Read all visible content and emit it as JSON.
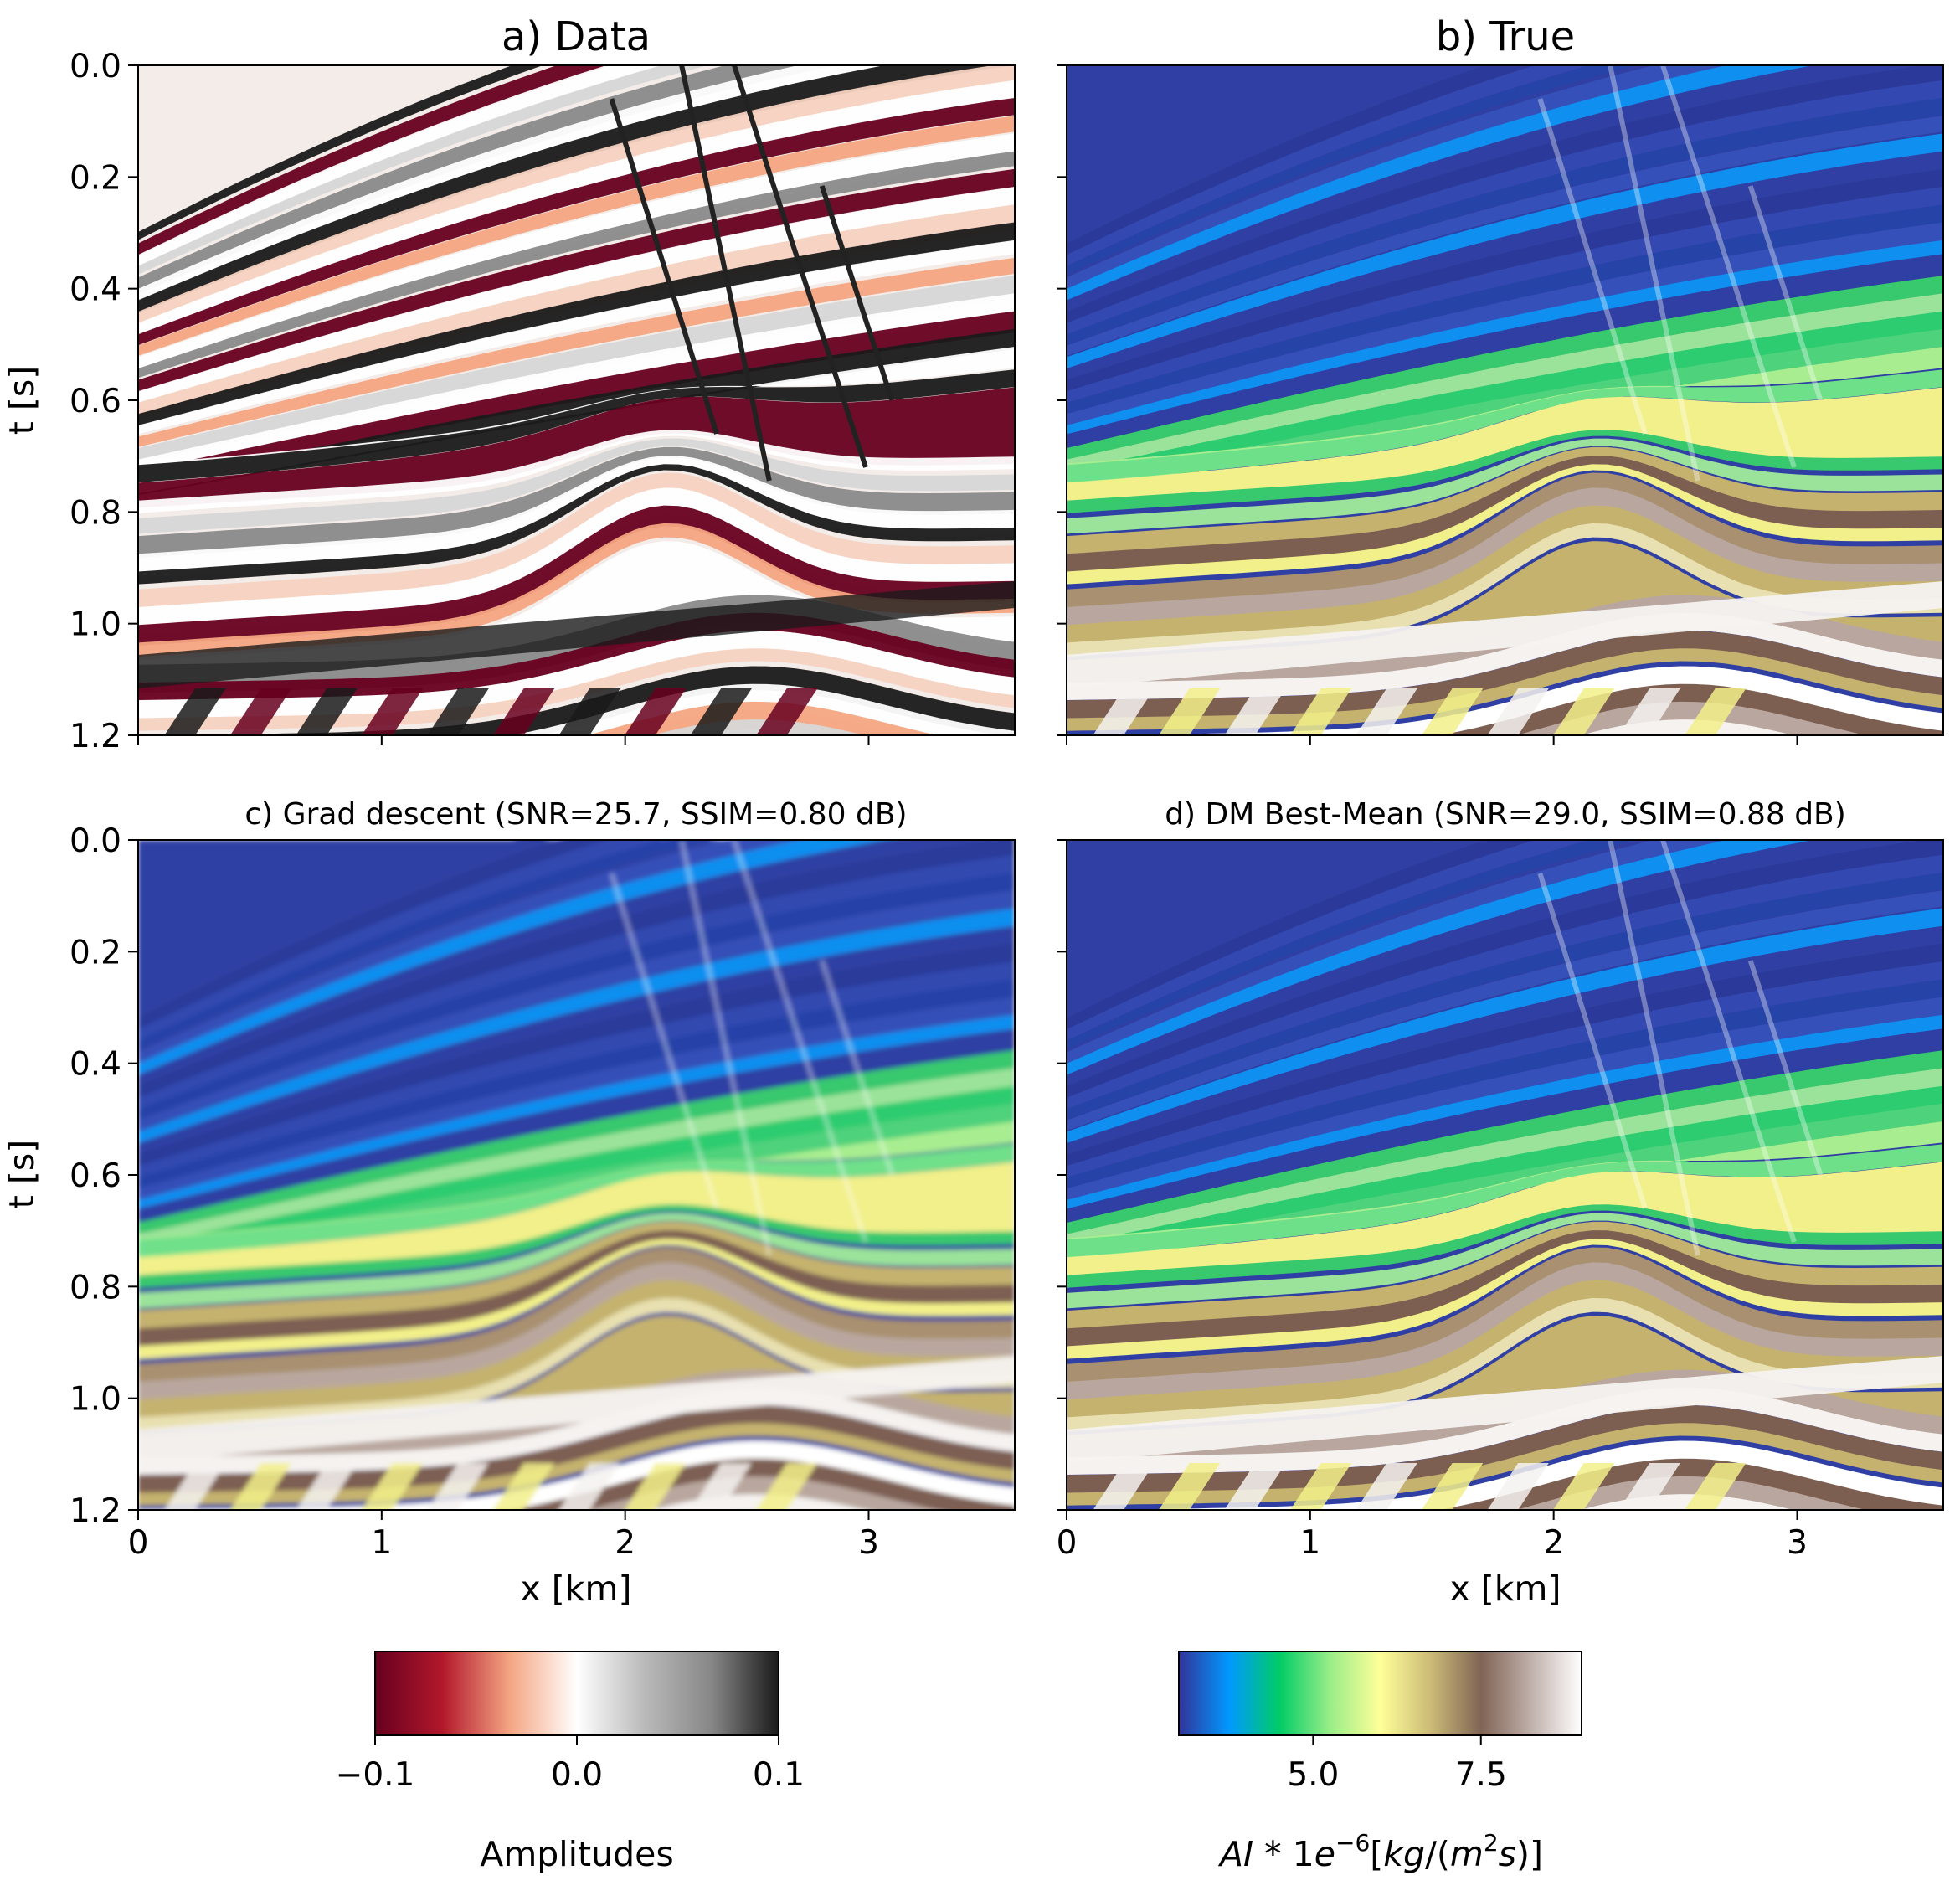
{
  "chart_data": [
    {
      "id": "a",
      "type": "heatmap",
      "title": "a) Data",
      "xlabel": "",
      "ylabel": "t [s]",
      "xlim": [
        0,
        3.6
      ],
      "ylim": [
        1.2,
        0.0
      ],
      "xticks": [
        0,
        1,
        2,
        3
      ],
      "xtick_labels_shown": false,
      "yticks": [
        "0.0",
        "0.2",
        "0.4",
        "0.6",
        "0.8",
        "1.0",
        "1.2"
      ],
      "colormap": "seismic-amplitude"
    },
    {
      "id": "b",
      "type": "heatmap",
      "title": "b) True",
      "xlabel": "",
      "ylabel": "",
      "xlim": [
        0,
        3.6
      ],
      "ylim": [
        1.2,
        0.0
      ],
      "xticks": [
        0,
        1,
        2,
        3
      ],
      "xtick_labels_shown": false,
      "ytick_labels_shown": false,
      "colormap": "terrain"
    },
    {
      "id": "c",
      "type": "heatmap",
      "title": "c) Grad descent (SNR=25.7, SSIM=0.80 dB)",
      "xlabel": "x [km]",
      "ylabel": "t [s]",
      "xlim": [
        0,
        3.6
      ],
      "ylim": [
        1.2,
        0.0
      ],
      "xticks": [
        "0",
        "1",
        "2",
        "3"
      ],
      "yticks": [
        "0.0",
        "0.2",
        "0.4",
        "0.6",
        "0.8",
        "1.0",
        "1.2"
      ],
      "colormap": "terrain"
    },
    {
      "id": "d",
      "type": "heatmap",
      "title": "d) DM Best-Mean (SNR=29.0, SSIM=0.88 dB)",
      "xlabel": "x [km]",
      "ylabel": "",
      "xlim": [
        0,
        3.6
      ],
      "ylim": [
        1.2,
        0.0
      ],
      "xticks": [
        "0",
        "1",
        "2",
        "3"
      ],
      "ytick_labels_shown": false,
      "colormap": "terrain"
    }
  ],
  "colorbars": [
    {
      "id": "amplitude",
      "label": "Amplitudes",
      "range": [
        -0.1,
        0.1
      ],
      "ticks": [
        -0.1,
        0.0,
        0.1
      ],
      "tick_labels": [
        "−0.1",
        "0.0",
        "0.1"
      ],
      "colors": [
        "#67001f",
        "#b2182b",
        "#f4a582",
        "#ffffff",
        "#bababa",
        "#878787",
        "#1a1a1a"
      ]
    },
    {
      "id": "impedance",
      "label": "AI * 1e⁻⁶[kg/(m²s)]",
      "label_parts": [
        "AI",
        " * 1",
        "e",
        "−6",
        "[",
        "kg",
        "/(",
        "m",
        "2",
        "s",
        ")]"
      ],
      "range": [
        3.0,
        9.0
      ],
      "ticks": [
        5.0,
        7.5
      ],
      "tick_labels": [
        "5.0",
        "7.5"
      ],
      "colors": [
        "#333399",
        "#0099ff",
        "#00cc66",
        "#99ee88",
        "#ffff99",
        "#ccbb77",
        "#806455",
        "#c0b0ab",
        "#ffffff"
      ]
    }
  ],
  "colors": {
    "seis_dark": "#1a1a1a",
    "seis_red": "#67001f",
    "seis_pink": "#f4a582",
    "terr_blue": "#2f3fa3",
    "terr_lblue": "#0f8ff0",
    "terr_green": "#2ecc70",
    "terr_lgreen": "#a8ee90",
    "terr_yellow": "#f2f08a",
    "terr_khaki": "#c4b26e",
    "terr_brown": "#7d5f52",
    "terr_lbrown": "#b9a79f",
    "terr_white": "#f5f2f0"
  }
}
